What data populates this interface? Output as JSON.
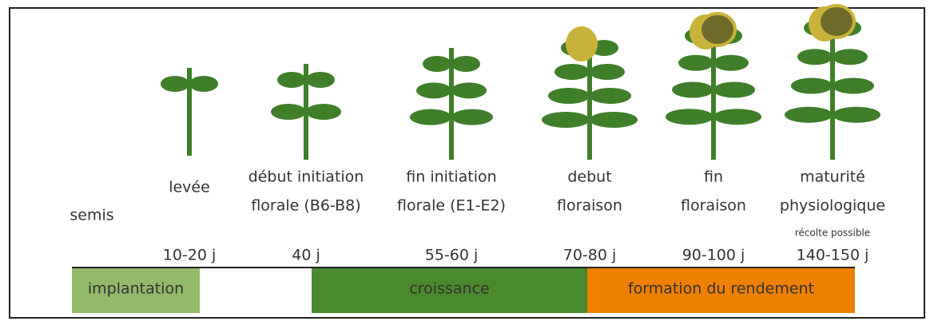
{
  "stages": [
    {
      "label": [
        "semis"
      ]
    },
    {
      "label": [
        "levée"
      ],
      "days": "10-20 j"
    },
    {
      "label": [
        "début initiation",
        "florale (B6-B8)"
      ],
      "days": "40 j"
    },
    {
      "label": [
        "fin initiation",
        "florale (E1-E2)"
      ],
      "days": "55-60 j"
    },
    {
      "label": [
        "debut",
        "floraison"
      ],
      "days": "70-80 j"
    },
    {
      "label": [
        "fin",
        "floraison"
      ],
      "days": "90-100 j"
    },
    {
      "label": [
        "maturité",
        "physiologique"
      ],
      "days": "140-150 j",
      "note": "récolte possible"
    }
  ],
  "phases": [
    {
      "label": "implantation",
      "color": "#93b96a"
    },
    {
      "label": "croissance",
      "color": "#4a8a2e"
    },
    {
      "label": "formation du rendement",
      "color": "#f08000"
    }
  ]
}
